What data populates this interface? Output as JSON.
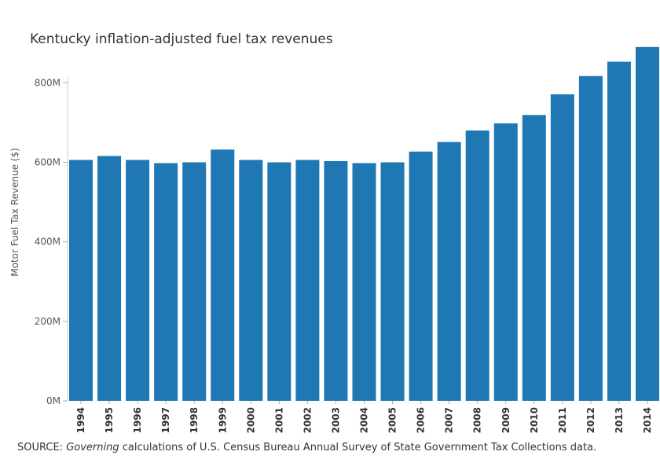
{
  "chart_data": {
    "type": "bar",
    "title": "Kentucky inflation-adjusted fuel tax revenues",
    "xlabel": "",
    "ylabel": "Motor Fuel Tax Revenue ($)",
    "categories": [
      "1994",
      "1995",
      "1996",
      "1997",
      "1998",
      "1999",
      "2000",
      "2001",
      "2002",
      "2003",
      "2004",
      "2005",
      "2006",
      "2007",
      "2008",
      "2009",
      "2010",
      "2011",
      "2012",
      "2013",
      "2014"
    ],
    "values": [
      606,
      616,
      606,
      598,
      600,
      632,
      606,
      600,
      606,
      603,
      598,
      600,
      627,
      651,
      680,
      698,
      719,
      771,
      817,
      853,
      890
    ],
    "units": "M",
    "yticks": [
      0,
      200,
      400,
      600,
      800
    ],
    "ytick_labels": [
      "0M",
      "200M",
      "400M",
      "600M",
      "800M"
    ],
    "ylim": [
      0,
      900
    ],
    "bar_color": "#1f77b4",
    "grid": false
  },
  "source": {
    "prefix": "SOURCE: ",
    "emphasis": "Governing",
    "suffix": " calculations of U.S. Census Bureau Annual Survey of State Government Tax Collections data."
  }
}
